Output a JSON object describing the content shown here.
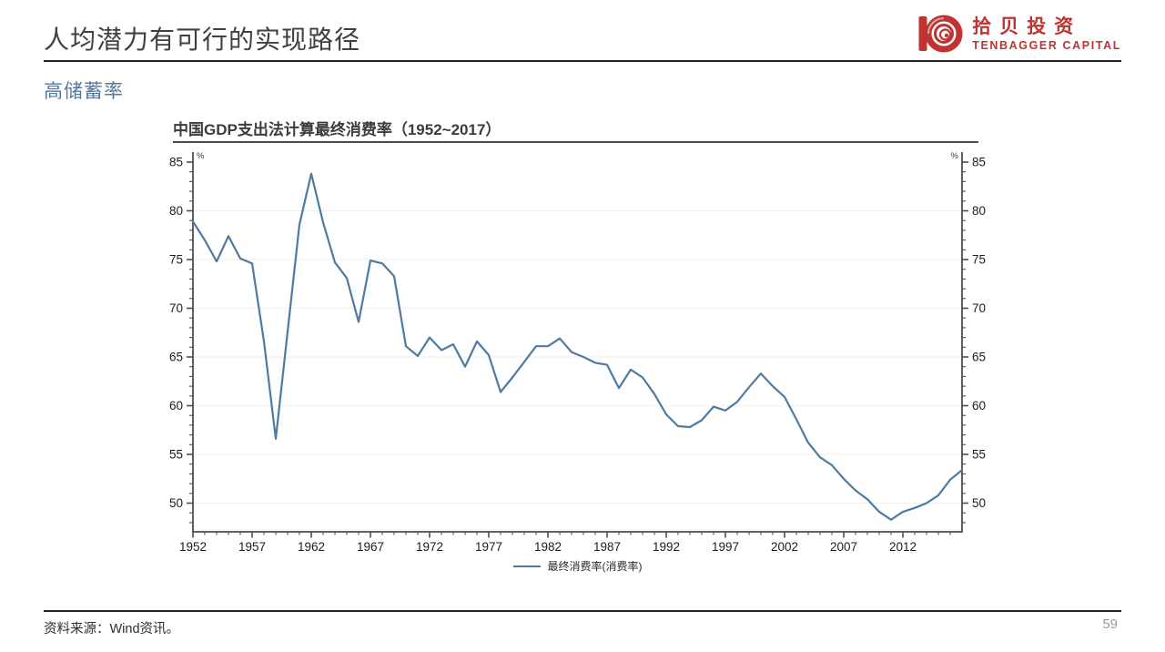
{
  "slide": {
    "title": "人均潜力有可行的实现路径",
    "subtitle": "高储蓄率",
    "source": "资料来源：Wind资讯。",
    "page_number": "59"
  },
  "logo": {
    "name_cn": "拾贝投资",
    "name_en": "TENBAGGER CAPITAL",
    "brand_color": "#bf3431"
  },
  "chart_data": {
    "type": "line",
    "title": "中国GDP支出法计算最终消费率（1952~2017）",
    "unit_label": "%",
    "legend": [
      "最终消费率(消费率)"
    ],
    "x": [
      1952,
      1953,
      1954,
      1955,
      1956,
      1957,
      1958,
      1959,
      1960,
      1961,
      1962,
      1963,
      1964,
      1965,
      1966,
      1967,
      1968,
      1969,
      1970,
      1971,
      1972,
      1973,
      1974,
      1975,
      1976,
      1977,
      1978,
      1979,
      1980,
      1981,
      1982,
      1983,
      1984,
      1985,
      1986,
      1987,
      1988,
      1989,
      1990,
      1991,
      1992,
      1993,
      1994,
      1995,
      1996,
      1997,
      1998,
      1999,
      2000,
      2001,
      2002,
      2003,
      2004,
      2005,
      2006,
      2007,
      2008,
      2009,
      2010,
      2011,
      2012,
      2013,
      2014,
      2015,
      2016,
      2017
    ],
    "series": [
      {
        "name": "最终消费率(消费率)",
        "values": [
          78.9,
          77.0,
          74.8,
          77.4,
          75.1,
          74.6,
          66.6,
          56.6,
          67.6,
          78.6,
          83.8,
          78.8,
          74.7,
          73.1,
          68.6,
          74.9,
          74.6,
          73.3,
          66.1,
          65.1,
          67.0,
          65.7,
          66.3,
          64.0,
          66.6,
          65.2,
          61.4,
          62.9,
          64.5,
          66.1,
          66.1,
          66.9,
          65.5,
          65.0,
          64.4,
          64.2,
          61.8,
          63.7,
          62.9,
          61.2,
          59.1,
          57.9,
          57.8,
          58.5,
          59.9,
          59.5,
          60.4,
          61.9,
          63.3,
          62.0,
          60.9,
          58.6,
          56.2,
          54.7,
          53.9,
          52.5,
          51.3,
          50.4,
          49.1,
          48.3,
          49.1,
          49.5,
          50.0,
          50.8,
          52.4,
          53.4
        ]
      }
    ],
    "ylim": [
      47,
      86
    ],
    "yticks": [
      50,
      55,
      60,
      65,
      70,
      75,
      80,
      85
    ],
    "xticks": [
      1952,
      1957,
      1962,
      1967,
      1972,
      1977,
      1982,
      1987,
      1992,
      1997,
      2002,
      2007,
      2012
    ],
    "grid": "horizontal-major",
    "legend_position": "bottom-center",
    "line_color": "#4f7aa1",
    "axis_color": "#4d4e50",
    "grid_color": "#f2efee",
    "tick_label_color": "#1d1d1f"
  }
}
